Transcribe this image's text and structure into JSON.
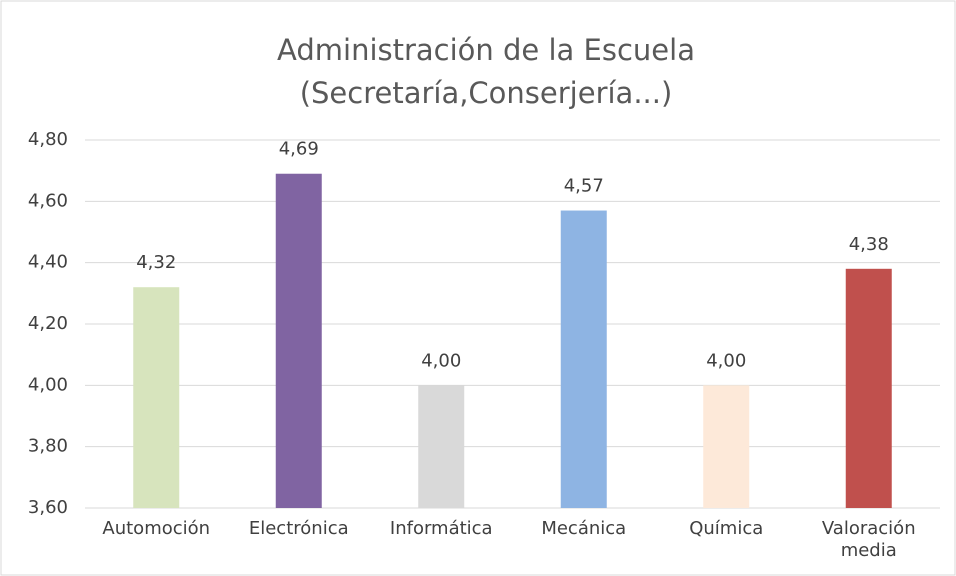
{
  "chart_data": {
    "type": "bar",
    "title": [
      "Administración de la Escuela",
      "(Secretaría,Conserjería...)"
    ],
    "categories": [
      "Automoción",
      "Electrónica",
      "Informática",
      "Mecánica",
      "Química",
      "Valoración media"
    ],
    "values": [
      4.32,
      4.69,
      4.0,
      4.57,
      4.0,
      4.38
    ],
    "value_labels": [
      "4,32",
      "4,69",
      "4,00",
      "4,57",
      "4,00",
      "4,38"
    ],
    "colors": [
      "#d7e4bd",
      "#8064a2",
      "#d9d9d9",
      "#8eb4e3",
      "#fde9d9",
      "#c0504d"
    ],
    "ylim": [
      3.6,
      4.8
    ],
    "yticks": [
      {
        "value": 3.6,
        "label": "3,60"
      },
      {
        "value": 3.8,
        "label": "3,80"
      },
      {
        "value": 4.0,
        "label": "4,00"
      },
      {
        "value": 4.2,
        "label": "4,20"
      },
      {
        "value": 4.4,
        "label": "4,40"
      },
      {
        "value": 4.6,
        "label": "4,60"
      },
      {
        "value": 4.8,
        "label": "4,80"
      }
    ],
    "grid": true
  }
}
